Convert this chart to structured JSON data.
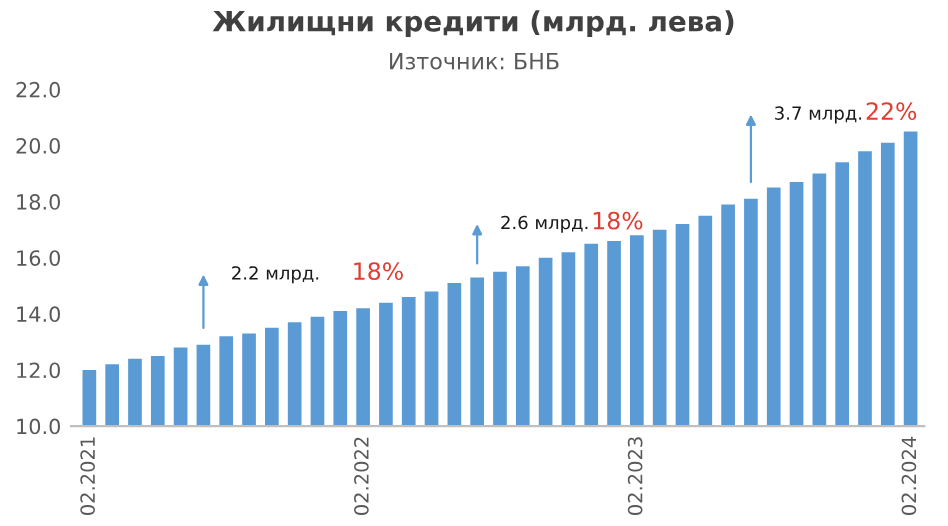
{
  "chart_data": {
    "type": "bar",
    "title": "Жилищни кредити (млрд. лева)",
    "subtitle": "Източник: БНБ",
    "categories": [
      "02.2021",
      null,
      null,
      null,
      null,
      null,
      null,
      null,
      null,
      null,
      null,
      null,
      "02.2022",
      null,
      null,
      null,
      null,
      null,
      null,
      null,
      null,
      null,
      null,
      null,
      "02.2023",
      null,
      null,
      null,
      null,
      null,
      null,
      null,
      null,
      null,
      null,
      null,
      "02.2024"
    ],
    "values": [
      12.0,
      12.2,
      12.4,
      12.5,
      12.8,
      12.9,
      13.2,
      13.3,
      13.5,
      13.7,
      13.9,
      14.1,
      14.2,
      14.4,
      14.6,
      14.8,
      15.1,
      15.3,
      15.5,
      15.7,
      16.0,
      16.2,
      16.5,
      16.6,
      16.8,
      17.0,
      17.2,
      17.5,
      17.9,
      18.1,
      18.5,
      18.7,
      19.0,
      19.4,
      19.8,
      20.1,
      20.5
    ],
    "color": "#5b9bd5",
    "ylim": [
      10,
      22
    ],
    "yticks": [
      {
        "value": 10,
        "label": "10.0"
      },
      {
        "value": 12,
        "label": "12.0"
      },
      {
        "value": 14,
        "label": "14.0"
      },
      {
        "value": 16,
        "label": "16.0"
      },
      {
        "value": 18,
        "label": "18.0"
      },
      {
        "value": 20,
        "label": "20.0"
      },
      {
        "value": 22,
        "label": "22.0"
      }
    ],
    "grid": false,
    "annotations": [
      "2.2 млрд.",
      "18%",
      "2.6 млрд.",
      "18%",
      "3.7 млрд.",
      "22%"
    ]
  }
}
